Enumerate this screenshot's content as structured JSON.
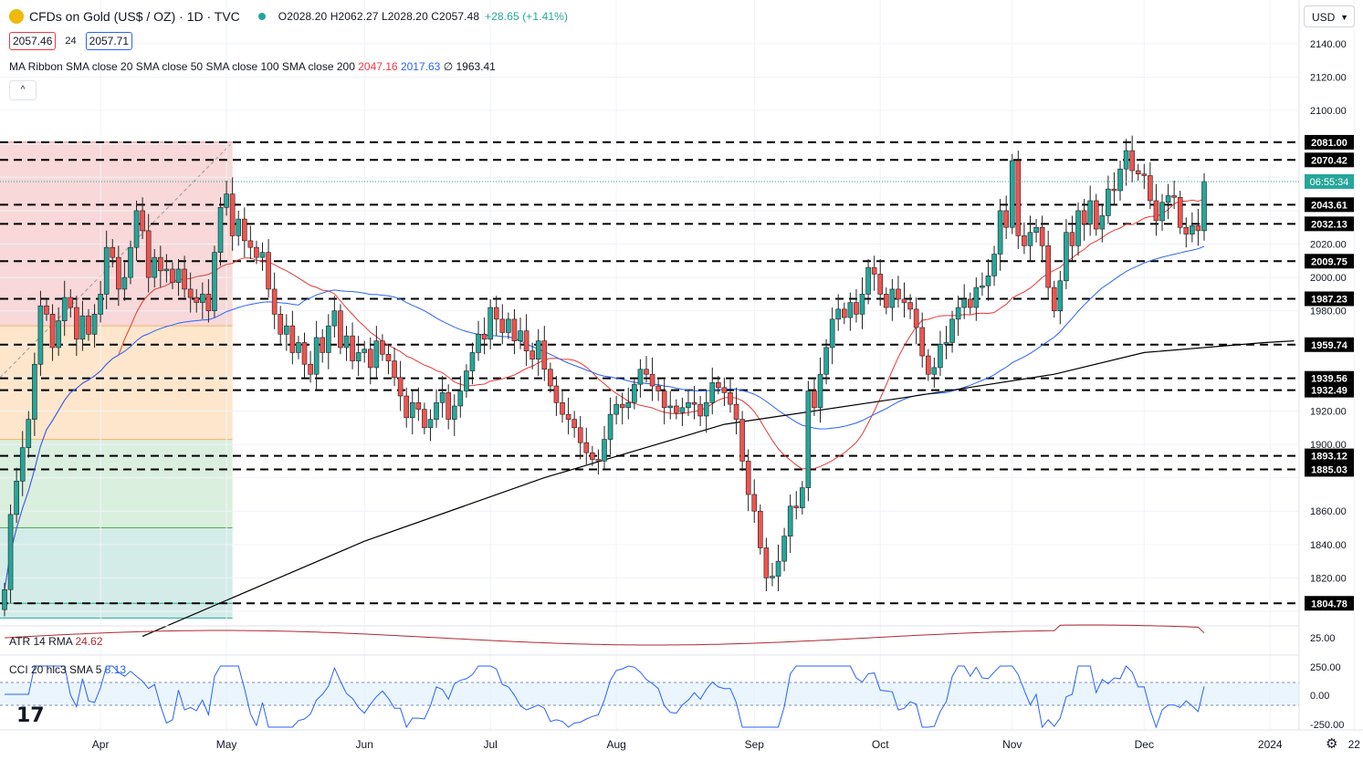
{
  "header": {
    "title": "CFDs on Gold (US$ / OZ) · 1D · TVC",
    "ohlc_text": "O2028.20  H2062.27  L2028.20  C2057.48",
    "change_text": "+28.65 (+1.41%)",
    "bid": "2057.46",
    "spread": "24",
    "ask": "2057.71",
    "ma_label": "MA Ribbon SMA close 20 SMA close 50 SMA close 100 SMA close 200",
    "ma_v1": "2047.16",
    "ma_v2": "2017.63",
    "ma_v3": "∅  1963.41",
    "collapse_icon": "^",
    "currency": "USD"
  },
  "indicators": {
    "atr_label": "ATR 14 RMA",
    "atr_value": "24.62",
    "cci_label": "CCI 20 hlc3 SMA 5",
    "cci_value": "8.13"
  },
  "colors": {
    "up": "#26a69a",
    "down": "#ef5350",
    "sma20": "#e53935",
    "sma50": "#2962ff",
    "sma200": "#000000",
    "fib_red": "#f7d1d1",
    "fib_orange": "#fde2c2",
    "fib_green": "#d5ecd9",
    "fib_teal": "#cce9e4",
    "atr": "#b22833",
    "cci": "#2962ff"
  },
  "chart_data": {
    "type": "candlestick",
    "price_range": [
      1785,
      2155
    ],
    "y_ticks": [
      1800,
      1820,
      1840,
      1860,
      1880,
      1900,
      1920,
      1940,
      1960,
      1980,
      2000,
      2020,
      2040,
      2060,
      2080,
      2100,
      2120,
      2140
    ],
    "y_tick_labels": [
      "1800.00",
      "1820.00",
      "1840.00",
      "1860.00",
      "1880.00",
      "1900.00",
      "1920.00",
      "1940.00",
      "1960.00",
      "1980.00",
      "2000.00",
      "2020.00",
      "2040.00",
      "2060.00",
      "2080.00",
      "2100.00",
      "2120.00",
      "2140.00"
    ],
    "x_labels": [
      {
        "label": "Apr",
        "bar": 16
      },
      {
        "label": "May",
        "bar": 37
      },
      {
        "label": "Jun",
        "bar": 60
      },
      {
        "label": "Jul",
        "bar": 81
      },
      {
        "label": "Aug",
        "bar": 102
      },
      {
        "label": "Sep",
        "bar": 125
      },
      {
        "label": "Oct",
        "bar": 146
      },
      {
        "label": "Nov",
        "bar": 168
      },
      {
        "label": "Dec",
        "bar": 190
      },
      {
        "label": "2024",
        "bar": 211
      },
      {
        "label": "22",
        "bar": 225
      }
    ],
    "levels": [
      {
        "value": 2081.0,
        "label": "2081.00"
      },
      {
        "value": 2070.42,
        "label": "2070.42"
      },
      {
        "value": 2043.61,
        "label": "2043.61"
      },
      {
        "value": 2032.13,
        "label": "2032.13"
      },
      {
        "value": 2009.75,
        "label": "2009.75"
      },
      {
        "value": 1987.23,
        "label": "1987.23"
      },
      {
        "value": 1959.74,
        "label": "1959.74"
      },
      {
        "value": 1939.56,
        "label": "1939.56"
      },
      {
        "value": 1932.49,
        "label": "1932.49"
      },
      {
        "value": 1893.12,
        "label": "1893.12"
      },
      {
        "value": 1885.03,
        "label": "1885.03"
      },
      {
        "value": 1804.78,
        "label": "1804.78"
      }
    ],
    "countdown_label": "06:55:34",
    "last_price": 2057.48,
    "fib_zones": {
      "bar_end": 38,
      "bounds": [
        2081,
        1971,
        1903,
        1850,
        1804.78,
        1796
      ]
    },
    "closes": [
      1813,
      1858,
      1878,
      1898,
      1915,
      1948,
      1983,
      1978,
      1958,
      1974,
      1988,
      1982,
      1963,
      1977,
      1966,
      1978,
      1990,
      2018,
      2012,
      1993,
      2000,
      2018,
      2040,
      2028,
      2000,
      2012,
      2004,
      2005,
      1997,
      2005,
      1993,
      1988,
      1985,
      1990,
      1980,
      2015,
      2042,
      2050,
      2025,
      2035,
      2022,
      2018,
      2012,
      2015,
      1993,
      1978,
      1966,
      1971,
      1955,
      1961,
      1948,
      1942,
      1964,
      1955,
      1971,
      1980,
      1958,
      1965,
      1950,
      1955,
      1957,
      1946,
      1962,
      1954,
      1950,
      1940,
      1929,
      1916,
      1925,
      1921,
      1910,
      1915,
      1925,
      1931,
      1915,
      1923,
      1932,
      1944,
      1955,
      1966,
      1963,
      1982,
      1975,
      1967,
      1975,
      1962,
      1968,
      1956,
      1951,
      1962,
      1945,
      1935,
      1925,
      1918,
      1915,
      1910,
      1901,
      1895,
      1891,
      1890,
      1903,
      1918,
      1924,
      1922,
      1925,
      1936,
      1945,
      1942,
      1935,
      1932,
      1922,
      1923,
      1919,
      1922,
      1925,
      1924,
      1917,
      1925,
      1937,
      1934,
      1931,
      1924,
      1915,
      1890,
      1870,
      1860,
      1838,
      1820,
      1821,
      1830,
      1845,
      1863,
      1862,
      1874,
      1932,
      1922,
      1942,
      1958,
      1975,
      1981,
      1976,
      1985,
      1978,
      1990,
      2006,
      2002,
      1990,
      1982,
      1993,
      1987,
      1985,
      1981,
      1970,
      1953,
      1942,
      1946,
      1960,
      1961,
      1975,
      1982,
      1987,
      1982,
      1994,
      1995,
      2001,
      2014,
      2040,
      2030,
      2070,
      2025,
      2019,
      2027,
      2030,
      2019,
      1994,
      1980,
      1998,
      2027,
      2019,
      2040,
      2032,
      2046,
      2029,
      2037,
      2053,
      2052,
      2065,
      2076,
      2064,
      2062,
      2061,
      2046,
      2034,
      2045,
      2049,
      2048,
      2030,
      2026,
      2031,
      2028,
      2057.48
    ]
  }
}
